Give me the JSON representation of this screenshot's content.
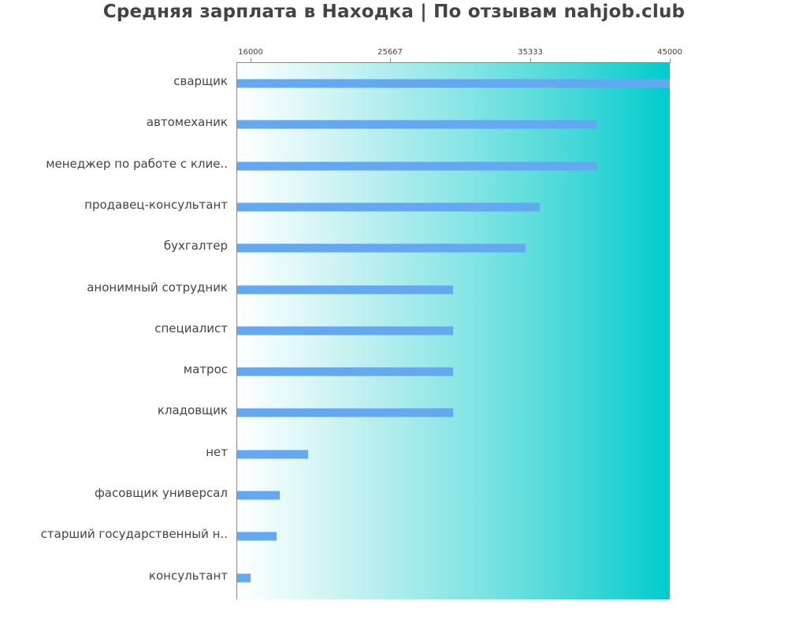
{
  "title": "Средняя зарплата в Находка | По отзывам nahjob.club",
  "axis": {
    "ticks": [
      {
        "label": "16000",
        "value": 16000
      },
      {
        "label": "25667",
        "value": 25667
      },
      {
        "label": "35333",
        "value": 35333
      },
      {
        "label": "45000",
        "value": 45000
      }
    ]
  },
  "colors": {
    "bar": "#63a8f0",
    "gradient_start": "#ffffff",
    "gradient_end": "#00cccc",
    "text": "#444444"
  },
  "chart_data": {
    "type": "bar",
    "orientation": "horizontal",
    "title": "Средняя зарплата в Находка | По отзывам nahjob.club",
    "xlabel": "",
    "ylabel": "",
    "xlim": [
      15075,
      45000
    ],
    "xticks": [
      16000,
      25667,
      35333,
      45000
    ],
    "grid": false,
    "legend": null,
    "categories": [
      "сварщик",
      "автомеханик",
      "менеджер по работе с клие..",
      "продавец-консультант",
      "бухгалтер",
      "анонимный сотрудник",
      "специалист",
      "матрос",
      "кладовщик",
      "нет",
      "фасовщик универсал",
      "старший государственный н..",
      "консультант"
    ],
    "values": [
      45000,
      40000,
      40000,
      36000,
      35000,
      30000,
      30000,
      30000,
      30000,
      20000,
      18000,
      17800,
      16000
    ]
  }
}
